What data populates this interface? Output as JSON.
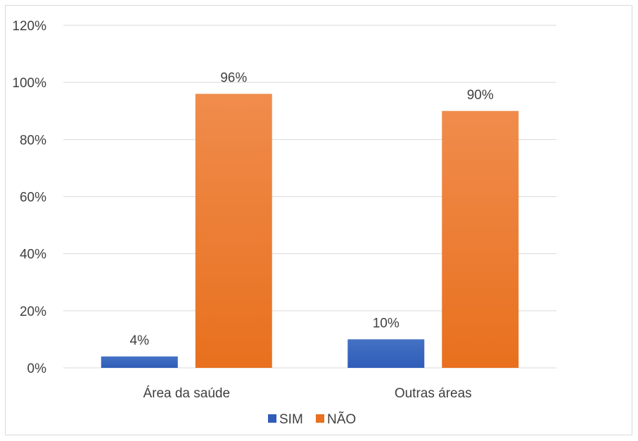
{
  "chart_data": {
    "type": "bar",
    "categories": [
      "Área da saúde",
      "Outras áreas"
    ],
    "series": [
      {
        "name": "SIM",
        "values": [
          4,
          10
        ],
        "color": "#4472c4",
        "color_dark": "#2f5cb8"
      },
      {
        "name": "NÃO",
        "values": [
          96,
          90
        ],
        "color": "#f08c4c",
        "color_dark": "#e8701e"
      }
    ],
    "data_labels": [
      [
        "4%",
        "10%"
      ],
      [
        "96%",
        "90%"
      ]
    ],
    "ylim": [
      0,
      120
    ],
    "yticks": [
      0,
      20,
      40,
      60,
      80,
      100,
      120
    ],
    "ytick_labels": [
      "0%",
      "20%",
      "40%",
      "60%",
      "80%",
      "100%",
      "120%"
    ],
    "grid": true,
    "legend_position": "bottom",
    "gridline_color": "#d9d9d9"
  }
}
